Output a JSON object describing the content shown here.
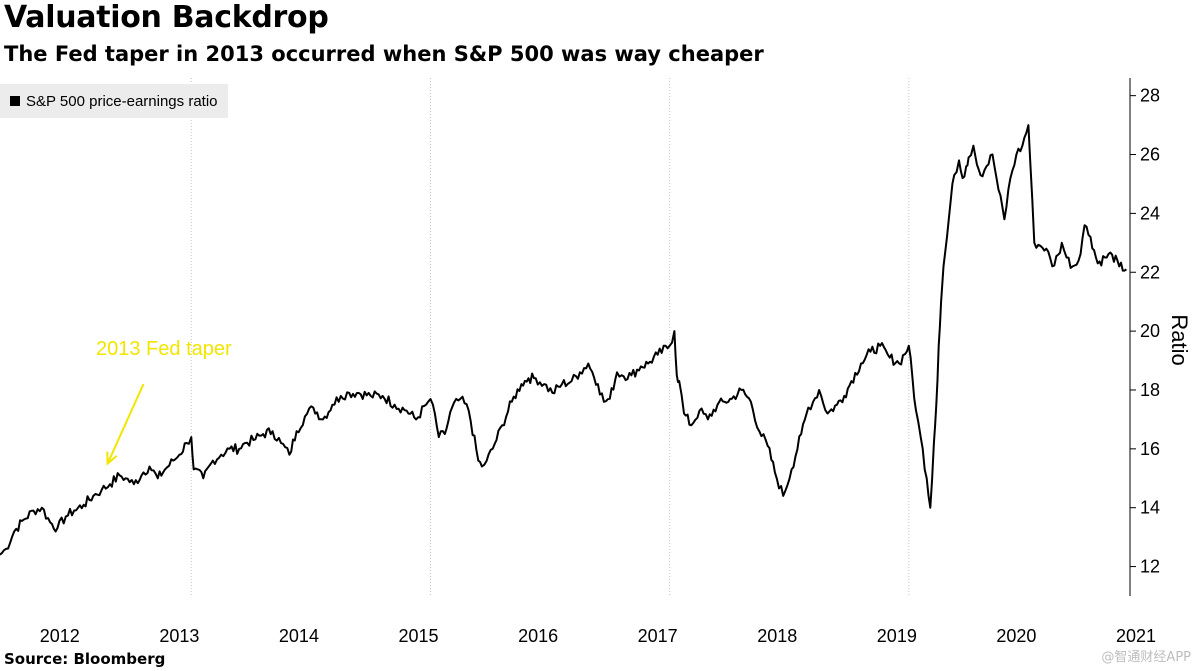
{
  "chart_data": {
    "type": "line",
    "title": "Valuation Backdrop",
    "subtitle": "The Fed taper in 2013 occurred when S&P 500 was way cheaper",
    "ylabel": "Ratio",
    "xlabel": "",
    "ylim": [
      11,
      28.6
    ],
    "y_ticks": [
      12,
      14,
      16,
      18,
      20,
      22,
      24,
      26,
      28
    ],
    "xlim": [
      2012.0,
      2021.45
    ],
    "x_ticks": [
      {
        "value": 2012.5,
        "label": "2012"
      },
      {
        "value": 2013.5,
        "label": "2013"
      },
      {
        "value": 2014.5,
        "label": "2014"
      },
      {
        "value": 2015.5,
        "label": "2015"
      },
      {
        "value": 2016.5,
        "label": "2016"
      },
      {
        "value": 2017.5,
        "label": "2017"
      },
      {
        "value": 2018.5,
        "label": "2018"
      },
      {
        "value": 2019.5,
        "label": "2019"
      },
      {
        "value": 2020.5,
        "label": "2020"
      },
      {
        "value": 2021.5,
        "label": "2021"
      }
    ],
    "grid_x": [
      2013.6,
      2015.6,
      2017.6,
      2019.6
    ],
    "legend": "top-left",
    "series": [
      {
        "name": "S&P 500 price-earnings ratio",
        "color": "#000000",
        "x": [
          2012.0,
          2012.05,
          2012.12,
          2012.2,
          2012.28,
          2012.35,
          2012.42,
          2012.48,
          2012.55,
          2012.62,
          2012.7,
          2012.78,
          2012.85,
          2012.92,
          2013.0,
          2013.05,
          2013.12,
          2013.2,
          2013.25,
          2013.32,
          2013.38,
          2013.45,
          2013.5,
          2013.56,
          2013.6,
          2013.62,
          2013.7,
          2013.78,
          2013.85,
          2013.92,
          2014.0,
          2014.05,
          2014.12,
          2014.2,
          2014.28,
          2014.35,
          2014.42,
          2014.48,
          2014.55,
          2014.62,
          2014.7,
          2014.78,
          2014.85,
          2014.92,
          2015.0,
          2015.1,
          2015.2,
          2015.3,
          2015.4,
          2015.48,
          2015.58,
          2015.62,
          2015.67,
          2015.72,
          2015.78,
          2015.85,
          2015.92,
          2016.0,
          2016.03,
          2016.07,
          2016.12,
          2016.2,
          2016.28,
          2016.36,
          2016.42,
          2016.48,
          2016.55,
          2016.62,
          2016.7,
          2016.78,
          2016.85,
          2016.92,
          2017.0,
          2017.05,
          2017.1,
          2017.16,
          2017.2,
          2017.28,
          2017.36,
          2017.42,
          2017.5,
          2017.6,
          2017.64,
          2017.66,
          2017.68,
          2017.72,
          2017.78,
          2017.85,
          2017.92,
          2018.0,
          2018.06,
          2018.12,
          2018.2,
          2018.28,
          2018.35,
          2018.42,
          2018.48,
          2018.55,
          2018.62,
          2018.7,
          2018.76,
          2018.8,
          2018.85,
          2018.92,
          2019.0,
          2019.06,
          2019.12,
          2019.2,
          2019.28,
          2019.36,
          2019.44,
          2019.52,
          2019.6,
          2019.66,
          2019.7,
          2019.75,
          2019.78,
          2019.81,
          2019.83,
          2019.85,
          2019.87,
          2019.89,
          2019.92,
          2019.95,
          2019.98,
          2020.02,
          2020.05,
          2020.08,
          2020.1,
          2020.14,
          2020.2,
          2020.25,
          2020.3,
          2020.35,
          2020.4,
          2020.45,
          2020.5,
          2020.55,
          2020.6,
          2020.65,
          2020.7,
          2020.75,
          2020.8,
          2020.85,
          2020.88,
          2020.92,
          2020.97,
          2021.02,
          2021.07,
          2021.12,
          2021.18,
          2021.24,
          2021.3,
          2021.36,
          2021.42
        ],
        "values": [
          12.4,
          12.6,
          13.2,
          13.6,
          13.9,
          14.0,
          13.5,
          13.3,
          13.7,
          13.9,
          14.1,
          14.4,
          14.6,
          14.8,
          15.1,
          15.0,
          14.8,
          15.2,
          15.4,
          15.0,
          15.3,
          15.6,
          15.8,
          16.2,
          16.4,
          15.3,
          15.0,
          15.6,
          15.8,
          16.0,
          16.0,
          16.2,
          16.3,
          16.5,
          16.6,
          16.2,
          15.8,
          16.6,
          17.1,
          17.4,
          17.0,
          17.5,
          17.8,
          17.9,
          17.9,
          17.8,
          17.8,
          17.5,
          17.3,
          17.0,
          17.6,
          17.5,
          16.4,
          16.5,
          17.4,
          17.7,
          17.3,
          15.6,
          15.4,
          15.6,
          16.0,
          16.8,
          17.6,
          18.2,
          18.4,
          18.4,
          18.2,
          17.9,
          18.2,
          18.3,
          18.6,
          18.9,
          18.2,
          17.6,
          17.7,
          18.6,
          18.5,
          18.5,
          18.8,
          18.9,
          19.2,
          19.5,
          20.0,
          18.5,
          18.3,
          17.2,
          16.8,
          17.3,
          17.0,
          17.5,
          17.6,
          17.7,
          18.0,
          17.6,
          16.6,
          16.1,
          15.2,
          14.4,
          15.3,
          16.5,
          17.4,
          17.6,
          18.0,
          17.2,
          17.5,
          17.8,
          18.3,
          18.9,
          19.3,
          19.5,
          19.1,
          18.9,
          19.5,
          17.3,
          16.4,
          15.0,
          14.0,
          16.2,
          17.5,
          19.5,
          21.0,
          22.2,
          23.2,
          24.4,
          25.3,
          25.8,
          25.2,
          25.6,
          25.9,
          26.3,
          25.3,
          25.6,
          26.0,
          24.8,
          23.8,
          25.2,
          26.0,
          26.3,
          27.0,
          23.0,
          22.9,
          22.8,
          22.2,
          22.6,
          23.0,
          22.5,
          22.2,
          22.4,
          23.6,
          23.2,
          22.3,
          22.5,
          22.6,
          22.2,
          22.1
        ]
      }
    ],
    "annotations": [
      {
        "text": "2013 Fed taper",
        "arrow_from": [
          2013.2,
          18.2
        ],
        "arrow_to": [
          2012.9,
          15.5
        ],
        "color": "#f2e600"
      }
    ]
  },
  "source": "Source: Bloomberg",
  "watermark": "@智通财经APP"
}
